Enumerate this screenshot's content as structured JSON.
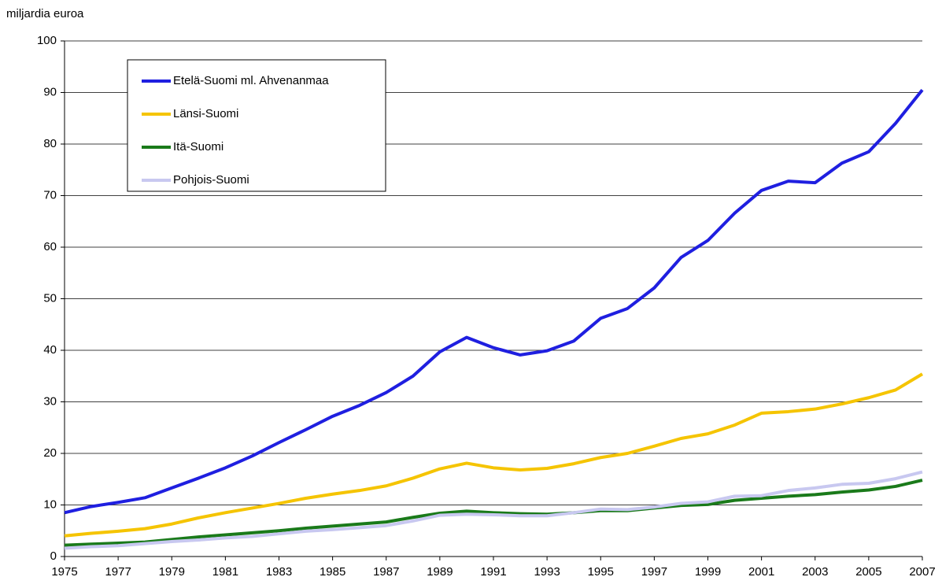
{
  "chart_data": {
    "type": "line",
    "y_axis_label": "miljardia euroa",
    "x": [
      1975,
      1976,
      1977,
      1978,
      1979,
      1980,
      1981,
      1982,
      1983,
      1984,
      1985,
      1986,
      1987,
      1988,
      1989,
      1990,
      1991,
      1992,
      1993,
      1994,
      1995,
      1996,
      1997,
      1998,
      1999,
      2000,
      2001,
      2002,
      2003,
      2004,
      2005,
      2006,
      2007
    ],
    "xlim": [
      1975,
      2007
    ],
    "xticks": [
      1975,
      1977,
      1979,
      1981,
      1983,
      1985,
      1987,
      1989,
      1991,
      1993,
      1995,
      1997,
      1999,
      2001,
      2003,
      2005,
      2007
    ],
    "ylim": [
      0,
      100
    ],
    "yticks": [
      0,
      10,
      20,
      30,
      40,
      50,
      60,
      70,
      80,
      90,
      100
    ],
    "grid": true,
    "legend": "upper left",
    "series": [
      {
        "name": "Etelä-Suomi ml. Ahvenanmaa",
        "color": "#1f1fe0",
        "values": [
          8.5,
          9.7,
          10.5,
          11.4,
          13.3,
          15.2,
          17.2,
          19.5,
          22.1,
          24.6,
          27.2,
          29.3,
          31.8,
          35.0,
          39.7,
          42.5,
          40.5,
          39.1,
          39.9,
          41.8,
          46.2,
          48.1,
          52.1,
          58.0,
          61.3,
          66.6,
          71.0,
          72.8,
          72.5,
          76.3,
          78.5,
          84.0,
          90.5
        ]
      },
      {
        "name": "Länsi-Suomi",
        "color": "#f5c400",
        "values": [
          4.0,
          4.5,
          4.9,
          5.4,
          6.3,
          7.5,
          8.5,
          9.4,
          10.3,
          11.3,
          12.1,
          12.8,
          13.7,
          15.2,
          17.0,
          18.1,
          17.2,
          16.8,
          17.1,
          18.0,
          19.2,
          20.0,
          21.4,
          22.9,
          23.8,
          25.5,
          27.8,
          28.1,
          28.6,
          29.6,
          30.8,
          32.3,
          35.4
        ]
      },
      {
        "name": "Itä-Suomi",
        "color": "#1a7a1a",
        "values": [
          2.2,
          2.4,
          2.6,
          2.8,
          3.3,
          3.8,
          4.2,
          4.6,
          5.0,
          5.5,
          5.9,
          6.3,
          6.7,
          7.6,
          8.4,
          8.8,
          8.5,
          8.3,
          8.2,
          8.5,
          8.9,
          8.9,
          9.4,
          9.9,
          10.1,
          10.9,
          11.3,
          11.7,
          12.0,
          12.5,
          12.9,
          13.6,
          14.8
        ]
      },
      {
        "name": "Pohjois-Suomi",
        "color": "#c8c8f0",
        "values": [
          1.6,
          1.9,
          2.1,
          2.5,
          2.9,
          3.2,
          3.6,
          3.9,
          4.4,
          4.9,
          5.2,
          5.6,
          6.0,
          6.9,
          8.0,
          8.2,
          8.1,
          7.9,
          7.9,
          8.5,
          9.2,
          9.1,
          9.6,
          10.3,
          10.6,
          11.7,
          11.8,
          12.8,
          13.3,
          14.0,
          14.2,
          15.1,
          16.4
        ]
      }
    ]
  }
}
